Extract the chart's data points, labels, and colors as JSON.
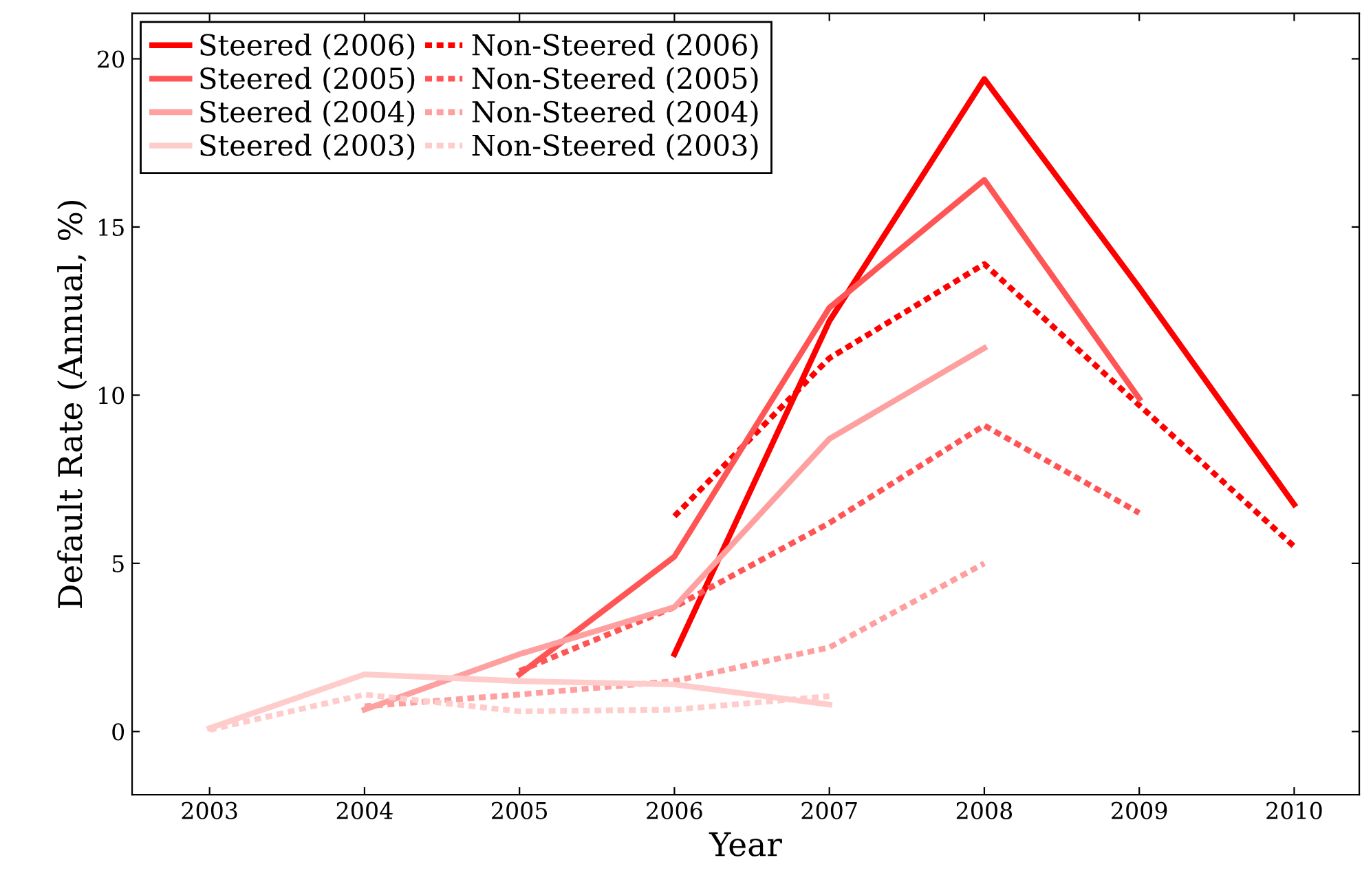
{
  "chart_data": {
    "type": "line",
    "xlabel": "Year",
    "ylabel": "Default Rate (Annual, %)",
    "xlim": [
      2002.5,
      2010.42
    ],
    "ylim": [
      -1.88,
      21.35
    ],
    "xticks": [
      2003,
      2004,
      2005,
      2006,
      2007,
      2008,
      2009,
      2010
    ],
    "yticks": [
      0,
      5,
      10,
      15,
      20
    ],
    "grid": false,
    "legend": "top left",
    "marker": "none",
    "series": [
      {
        "name": "Steered (2006)",
        "color": "#ff0000",
        "line_style": "solid",
        "x": [
          2006,
          2007,
          2008,
          2009,
          2010
        ],
        "values": [
          2.3,
          12.2,
          19.4,
          13.2,
          6.75
        ]
      },
      {
        "name": "Non-Steered (2006)",
        "color": "#ff0000",
        "line_style": "dotted",
        "x": [
          2006,
          2007,
          2008,
          2009,
          2010
        ],
        "values": [
          6.4,
          11.1,
          13.9,
          9.7,
          5.5
        ]
      },
      {
        "name": "Steered (2005)",
        "color": "#ff5555",
        "line_style": "solid",
        "x": [
          2005,
          2006,
          2007,
          2008,
          2009
        ],
        "values": [
          1.7,
          5.2,
          12.6,
          16.4,
          9.9
        ]
      },
      {
        "name": "Non-Steered (2005)",
        "color": "#ff5555",
        "line_style": "dotted",
        "x": [
          2005,
          2006,
          2007,
          2008,
          2009
        ],
        "values": [
          1.8,
          3.7,
          6.2,
          9.1,
          6.5
        ]
      },
      {
        "name": "Steered (2004)",
        "color": "#ffa0a0",
        "line_style": "solid",
        "x": [
          2004,
          2005,
          2006,
          2007,
          2008
        ],
        "values": [
          0.65,
          2.3,
          3.7,
          8.7,
          11.4
        ]
      },
      {
        "name": "Non-Steered (2004)",
        "color": "#ffa0a0",
        "line_style": "dotted",
        "x": [
          2004,
          2005,
          2006,
          2007,
          2008
        ],
        "values": [
          0.75,
          1.1,
          1.5,
          2.5,
          5.0
        ]
      },
      {
        "name": "Steered (2003)",
        "color": "#ffcccc",
        "line_style": "solid",
        "x": [
          2003,
          2004,
          2005,
          2006,
          2007
        ],
        "values": [
          0.1,
          1.7,
          1.5,
          1.4,
          0.8
        ]
      },
      {
        "name": "Non-Steered (2003)",
        "color": "#ffcccc",
        "line_style": "dotted",
        "x": [
          2003,
          2004,
          2005,
          2006,
          2007
        ],
        "values": [
          0.05,
          1.1,
          0.6,
          0.65,
          1.05
        ]
      }
    ]
  }
}
